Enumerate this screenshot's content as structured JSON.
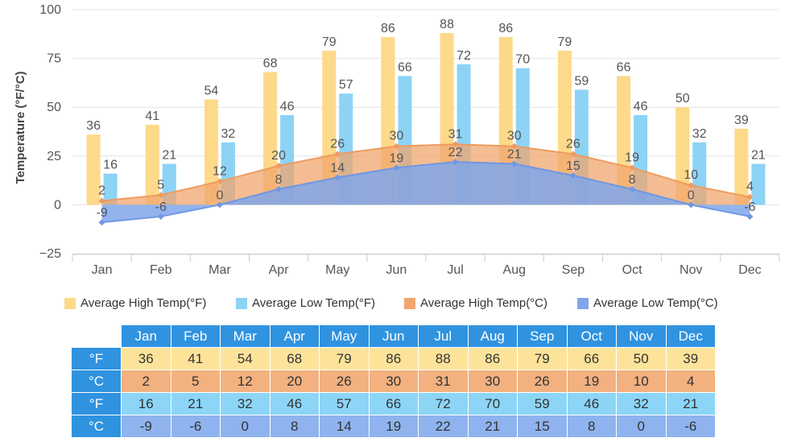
{
  "chart_data": {
    "type": "bar",
    "categories": [
      "Jan",
      "Feb",
      "Mar",
      "Apr",
      "May",
      "Jun",
      "Jul",
      "Aug",
      "Sep",
      "Oct",
      "Nov",
      "Dec"
    ],
    "ylabel": "Temperature (°F/°C)",
    "ylim": [
      -25,
      100
    ],
    "yticks": [
      "100",
      "75",
      "50",
      "25",
      "0",
      "−25"
    ],
    "ytick_values": [
      100,
      75,
      50,
      25,
      0,
      -25
    ],
    "grid": true,
    "legend_position": "bottom",
    "series": [
      {
        "name": "Average High Temp(°F)",
        "type": "bar",
        "color": "#fdd98a",
        "values": [
          36,
          41,
          54,
          68,
          79,
          86,
          88,
          86,
          79,
          66,
          50,
          39
        ]
      },
      {
        "name": "Average Low Temp(°F)",
        "type": "bar",
        "color": "#8dd3f5",
        "values": [
          16,
          21,
          32,
          46,
          57,
          66,
          72,
          70,
          59,
          46,
          32,
          21
        ]
      },
      {
        "name": "Average High Temp(°C)",
        "type": "area",
        "color": "#f0a56e",
        "values": [
          2,
          5,
          12,
          20,
          26,
          30,
          31,
          30,
          26,
          19,
          10,
          4
        ]
      },
      {
        "name": "Average Low Temp(°C)",
        "type": "area",
        "color": "#7fa6ea",
        "values": [
          -9,
          -6,
          0,
          8,
          14,
          19,
          22,
          21,
          15,
          8,
          0,
          -6
        ]
      }
    ]
  },
  "table": {
    "months": [
      "Jan",
      "Feb",
      "Mar",
      "Apr",
      "May",
      "Jun",
      "Jul",
      "Aug",
      "Sep",
      "Oct",
      "Nov",
      "Dec"
    ],
    "rows": [
      {
        "unit": "°F",
        "values": [
          "36",
          "41",
          "54",
          "68",
          "79",
          "86",
          "88",
          "86",
          "79",
          "66",
          "50",
          "39"
        ]
      },
      {
        "unit": "°C",
        "values": [
          "2",
          "5",
          "12",
          "20",
          "26",
          "30",
          "31",
          "30",
          "26",
          "19",
          "10",
          "4"
        ]
      },
      {
        "unit": "°F",
        "values": [
          "16",
          "21",
          "32",
          "46",
          "57",
          "66",
          "72",
          "70",
          "59",
          "46",
          "32",
          "21"
        ]
      },
      {
        "unit": "°C",
        "values": [
          "-9",
          "-6",
          "0",
          "8",
          "14",
          "19",
          "22",
          "21",
          "15",
          "8",
          "0",
          "-6"
        ]
      }
    ]
  }
}
